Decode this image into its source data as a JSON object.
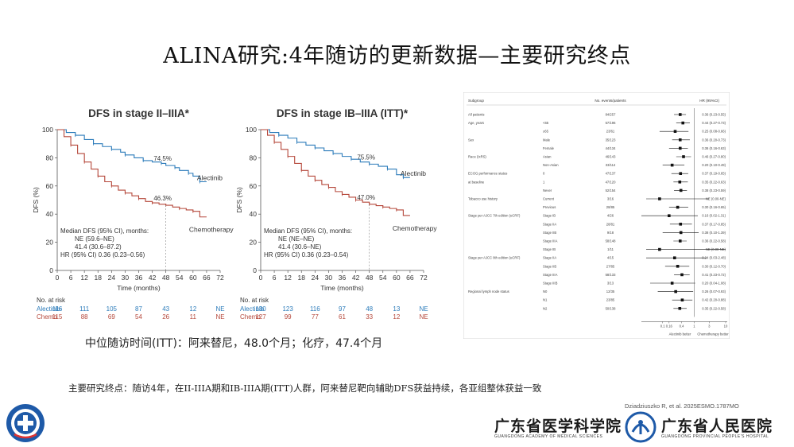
{
  "title": "ALINA研究:4年随访的更新数据—主要研究终点",
  "colors": {
    "alectinib": "#2b7bba",
    "chemo": "#b5473a",
    "grid": "#999999"
  },
  "chart_data": [
    {
      "type": "line",
      "title": "DFS in stage II–IIIA*",
      "xlabel": "Time (months)",
      "ylabel": "DFS (%)",
      "xlim": [
        0,
        72
      ],
      "ylim": [
        0,
        100
      ],
      "xticks": [
        "0",
        "6",
        "12",
        "18",
        "24",
        "30",
        "36",
        "42",
        "48",
        "54",
        "60",
        "66",
        "72"
      ],
      "yticks": [
        "0",
        "20",
        "40",
        "60",
        "80",
        "100"
      ],
      "series": [
        {
          "name": "Alectinib",
          "x": [
            0,
            4,
            8,
            12,
            16,
            20,
            24,
            28,
            30,
            34,
            38,
            42,
            46,
            48,
            52,
            54,
            58,
            60,
            63,
            66
          ],
          "y": [
            100,
            98,
            96,
            93,
            90,
            88,
            86,
            84,
            82,
            80,
            78,
            77,
            76,
            74.5,
            73,
            71,
            69,
            67,
            63,
            63
          ]
        },
        {
          "name": "Chemotherapy",
          "x": [
            0,
            3,
            6,
            9,
            12,
            15,
            18,
            21,
            24,
            27,
            30,
            33,
            36,
            39,
            42,
            45,
            48,
            51,
            54,
            57,
            60,
            63,
            66
          ],
          "y": [
            100,
            95,
            89,
            83,
            77,
            72,
            67,
            63,
            60,
            57,
            55,
            53,
            51,
            49,
            48,
            47,
            46.3,
            45,
            44,
            43,
            42,
            38,
            38
          ]
        }
      ],
      "annotations": {
        "alectinib_pct": "74.5%",
        "chemo_pct": "46.3%"
      },
      "median_lines": [
        "Median DFS (95% CI), months:",
        "NE (59.6–NE)",
        "41.4 (30.6–87.2)",
        "HR (95% CI) 0.36 (0.23–0.56)"
      ],
      "risk": {
        "header": "No. at risk",
        "rows": [
          {
            "name": "Alectinib",
            "values": [
              "116",
              "111",
              "105",
              "87",
              "43",
              "12",
              "NE"
            ]
          },
          {
            "name": "Chemo",
            "values": [
              "115",
              "88",
              "69",
              "54",
              "26",
              "11",
              "NE"
            ]
          }
        ]
      }
    },
    {
      "type": "line",
      "title": "DFS in stage IB–IIIA (ITT)*",
      "xlabel": "Time (months)",
      "ylabel": "DFS (%)",
      "xlim": [
        0,
        72
      ],
      "ylim": [
        0,
        100
      ],
      "xticks": [
        "0",
        "6",
        "12",
        "18",
        "24",
        "30",
        "36",
        "42",
        "48",
        "54",
        "60",
        "66",
        "72"
      ],
      "yticks": [
        "0",
        "20",
        "40",
        "60",
        "80",
        "100"
      ],
      "series": [
        {
          "name": "Alectinib",
          "x": [
            0,
            4,
            8,
            12,
            16,
            20,
            24,
            28,
            32,
            36,
            40,
            44,
            48,
            52,
            56,
            60,
            63,
            66
          ],
          "y": [
            100,
            98,
            96,
            94,
            91,
            89,
            87,
            85,
            83,
            81,
            79,
            77,
            75.5,
            74,
            72,
            68,
            66,
            66
          ]
        },
        {
          "name": "Chemotherapy",
          "x": [
            0,
            3,
            6,
            9,
            12,
            15,
            18,
            21,
            24,
            27,
            30,
            33,
            36,
            39,
            42,
            45,
            48,
            51,
            54,
            57,
            60,
            63,
            66
          ],
          "y": [
            100,
            96,
            91,
            86,
            81,
            76,
            71,
            67,
            64,
            61,
            59,
            56,
            54,
            52,
            50,
            48.5,
            47,
            46,
            45,
            44,
            43,
            39,
            39
          ]
        }
      ],
      "annotations": {
        "alectinib_pct": "75.5%",
        "chemo_pct": "47.0%"
      },
      "median_lines": [
        "Median DFS (95% CI), months:",
        "NE (NE–NE)",
        "41.4 (30.6–NE)",
        "HR (95% CI) 0.36 (0.23–0.54)"
      ],
      "risk": {
        "header": "No. at risk",
        "rows": [
          {
            "name": "Alectinib",
            "values": [
              "130",
              "123",
              "116",
              "97",
              "48",
              "13",
              "NE"
            ]
          },
          {
            "name": "Chemo",
            "values": [
              "127",
              "99",
              "77",
              "61",
              "33",
              "12",
              "NE"
            ]
          }
        ]
      }
    }
  ],
  "forest": {
    "header_sub": "Subgroup",
    "header_events": "No. events/patients",
    "header_hr": "HR (95%CI)",
    "xlabel_left": "Alectinib better",
    "xlabel_right": "Chemotherapy better",
    "axis_ticks": [
      "0.1",
      "0.16",
      "0.4",
      "1",
      "3",
      "10"
    ],
    "rows": [
      {
        "g": "All patients",
        "s": "",
        "n": "84/257",
        "hr": "0.36 (0.23-0.55)",
        "est": 0.36,
        "lo": 0.23,
        "hi": 0.55
      },
      {
        "g": "Age, years",
        "s": "<65",
        "n": "57/196",
        "hr": "0.44 (0.27-0.73)",
        "est": 0.44,
        "lo": 0.27,
        "hi": 0.73
      },
      {
        "g": "",
        "s": "≥65",
        "n": "23/61",
        "hr": "0.25 (0.08-0.66)",
        "est": 0.25,
        "lo": 0.08,
        "hi": 0.66
      },
      {
        "g": "Sex",
        "s": "Male",
        "n": "35/123",
        "hr": "0.36 (0.20-0.73)",
        "est": 0.36,
        "lo": 0.2,
        "hi": 0.73
      },
      {
        "g": "",
        "s": "Female",
        "n": "44/134",
        "hr": "0.36 (0.16-0.63)",
        "est": 0.36,
        "lo": 0.16,
        "hi": 0.63
      },
      {
        "g": "Race (IxRS)",
        "s": "Asian",
        "n": "46/143",
        "hr": "0.46 (0.27-0.80)",
        "est": 0.46,
        "lo": 0.27,
        "hi": 0.8
      },
      {
        "g": "",
        "s": "Non-Asian",
        "n": "33/114",
        "hr": "0.20 (0.10-0.49)",
        "est": 0.2,
        "lo": 0.1,
        "hi": 0.49
      },
      {
        "g": "ECOG performance status",
        "s": "0",
        "n": "47/137",
        "hr": "0.37 (0.19-0.65)",
        "est": 0.37,
        "lo": 0.19,
        "hi": 0.65
      },
      {
        "g": "at baseline",
        "s": "1",
        "n": "47/120",
        "hr": "0.35 (0.22-0.63)",
        "est": 0.35,
        "lo": 0.22,
        "hi": 0.63
      },
      {
        "g": "",
        "s": "Never",
        "n": "52/154",
        "hr": "0.38 (0.23-0.59)",
        "est": 0.38,
        "lo": 0.23,
        "hi": 0.59
      },
      {
        "g": "Tobacco use history",
        "s": "Current",
        "n": "3/16",
        "hr": "NE (0.00-NE)",
        "est": 0.08,
        "lo": 0.03,
        "hi": 3
      },
      {
        "g": "",
        "s": "Previous",
        "n": "28/85",
        "hr": "0.30 (0.16-0.65)",
        "est": 0.3,
        "lo": 0.16,
        "hi": 0.65
      },
      {
        "g": "Stage per AJCC 7th edition (eCRF)",
        "s": "Stage IB",
        "n": "4/26",
        "hr": "0.16 (0.02-1.31)",
        "est": 0.16,
        "lo": 0.02,
        "hi": 1.31
      },
      {
        "g": "",
        "s": "Stage IIA",
        "n": "28/81",
        "hr": "0.37 (0.17-0.85)",
        "est": 0.37,
        "lo": 0.17,
        "hi": 0.85
      },
      {
        "g": "",
        "s": "Stage IIB",
        "n": "9/18",
        "hr": "0.38 (0.10-1.39)",
        "est": 0.38,
        "lo": 0.1,
        "hi": 1.39
      },
      {
        "g": "",
        "s": "Stage IIIA",
        "n": "58/148",
        "hr": "0.36 (0.22-0.58)",
        "est": 0.36,
        "lo": 0.22,
        "hi": 0.58
      },
      {
        "g": "",
        "s": "Stage IB",
        "n": "1/11",
        "hr": "NE (0.00-NE)",
        "est": 0.08,
        "lo": 0.03,
        "hi": 10
      },
      {
        "g": "Stage per AJCC 8th edition (eCRF)",
        "s": "Stage IIA",
        "n": "4/15",
        "hr": "0.24 (0.03-2.48)",
        "est": 0.24,
        "lo": 0.03,
        "hi": 2.48
      },
      {
        "g": "",
        "s": "Stage IIB",
        "n": "27/85",
        "hr": "0.30 (0.12-0.70)",
        "est": 0.3,
        "lo": 0.12,
        "hi": 0.7
      },
      {
        "g": "",
        "s": "Stage IIIA",
        "n": "58/133",
        "hr": "0.41 (0.23-0.72)",
        "est": 0.41,
        "lo": 0.23,
        "hi": 0.72
      },
      {
        "g": "",
        "s": "Stage IIIB",
        "n": "3/13",
        "hr": "0.20 (0.04-1.08)",
        "est": 0.2,
        "lo": 0.04,
        "hi": 1.08
      },
      {
        "g": "Regional lymph node status",
        "s": "N0",
        "n": "12/35",
        "hr": "0.26 (0.07-0.93)",
        "est": 0.26,
        "lo": 0.07,
        "hi": 0.93
      },
      {
        "g": "",
        "s": "N1",
        "n": "23/85",
        "hr": "0.42 (0.20-0.88)",
        "est": 0.42,
        "lo": 0.2,
        "hi": 0.88
      },
      {
        "g": "",
        "s": "N2",
        "n": "50/138",
        "hr": "0.35 (0.22-0.58)",
        "est": 0.35,
        "lo": 0.22,
        "hi": 0.58
      }
    ]
  },
  "followup": "中位随访时间(ITT)：阿来替尼，48.0个月；化疗，47.4个月",
  "endpoint": "主要研究终点：随访4年，在II-IIIA期和IB-IIIA期(ITT)人群，阿来替尼靶向辅助DFS获益持续，各亚组整体获益一致",
  "citation": "Dziadziuszko R, et al. 2025ESMO.1787MO",
  "institution1": {
    "cn": "广东省医学科学院",
    "en": "GUANGDONG ACADEMY OF MEDICAL SCIENCES"
  },
  "institution2": {
    "cn": "广东省人民医院",
    "en": "GUANGDONG PROVINCIAL PEOPLE'S HOSPITAL"
  },
  "icons": {
    "left_logo": "hospital-seal-icon",
    "mid_logo": "hospital-emblem-icon"
  }
}
